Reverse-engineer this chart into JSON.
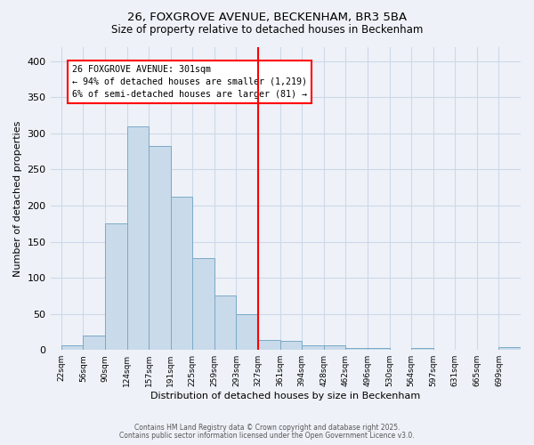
{
  "title1": "26, FOXGROVE AVENUE, BECKENHAM, BR3 5BA",
  "title2": "Size of property relative to detached houses in Beckenham",
  "xlabel": "Distribution of detached houses by size in Beckenham",
  "ylabel": "Number of detached properties",
  "bins": [
    "22sqm",
    "56sqm",
    "90sqm",
    "124sqm",
    "157sqm",
    "191sqm",
    "225sqm",
    "259sqm",
    "293sqm",
    "327sqm",
    "361sqm",
    "394sqm",
    "428sqm",
    "462sqm",
    "496sqm",
    "530sqm",
    "564sqm",
    "597sqm",
    "631sqm",
    "665sqm",
    "699sqm"
  ],
  "values": [
    6,
    20,
    175,
    310,
    283,
    212,
    127,
    76,
    50,
    14,
    13,
    7,
    7,
    3,
    3,
    0,
    3,
    0,
    0,
    0,
    4
  ],
  "bar_color": "#c9daea",
  "bar_edge_color": "#7aaac8",
  "grid_color": "#cdd8e8",
  "vline_color": "red",
  "annotation_text": "26 FOXGROVE AVENUE: 301sqm\n← 94% of detached houses are smaller (1,219)\n6% of semi-detached houses are larger (81) →",
  "annotation_box_color": "white",
  "annotation_box_edge": "red",
  "ylim": [
    0,
    420
  ],
  "yticks": [
    0,
    50,
    100,
    150,
    200,
    250,
    300,
    350,
    400
  ],
  "footnote1": "Contains HM Land Registry data © Crown copyright and database right 2025.",
  "footnote2": "Contains public sector information licensed under the Open Government Licence v3.0.",
  "bg_color": "#eef2f8"
}
